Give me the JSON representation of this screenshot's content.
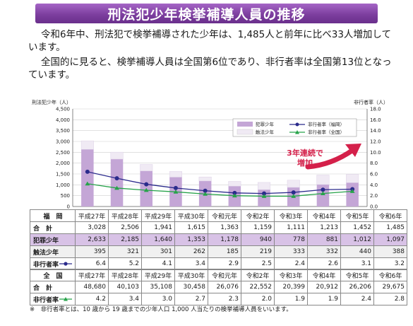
{
  "banner_title": "刑法犯少年検挙補導人員の推移",
  "paragraph1": "令和6年中、刑法犯で検挙補導された少年は、1,485人と前年に比べ33人増加しています。",
  "paragraph2": "全国的に見ると、検挙補導人員は全国第6位であり、非行者率は全国第13位となっています。",
  "annotation": "3年連続で\n増加",
  "colors": {
    "banner": "#7d3f9f",
    "crime_bar": "#c4a6d6",
    "law_bar": "#f0eaf4",
    "rate_fukuoka": "#2b2b8c",
    "rate_national": "#27a34a",
    "arrow": "#d4204a"
  },
  "chart_data": {
    "type": "bar",
    "categories": [
      "平成27年",
      "平成28年",
      "平成29年",
      "平成30年",
      "令和元年",
      "令和2年",
      "令和3年",
      "令和4年",
      "令和5年",
      "令和6年"
    ],
    "ylabel": "刑法犯少年（人）",
    "y2label": "非行者率（人）",
    "ylim": [
      0,
      4500
    ],
    "y2lim": [
      0,
      18.0
    ],
    "yticks": [
      "0",
      "500",
      "1,000",
      "1,500",
      "2,000",
      "2,500",
      "3,000",
      "3,500",
      "4,000",
      "4,500"
    ],
    "y2ticks": [
      "0.0",
      "2.0",
      "4.0",
      "6.0",
      "8.0",
      "10.0",
      "12.0",
      "14.0",
      "16.0",
      "18.0"
    ],
    "series": [
      {
        "name": "犯罪少年",
        "type": "bar",
        "values": [
          2633,
          2185,
          1640,
          1353,
          1178,
          940,
          778,
          881,
          1012,
          1097
        ]
      },
      {
        "name": "触法少年",
        "type": "bar",
        "values": [
          395,
          321,
          301,
          262,
          185,
          219,
          333,
          332,
          440,
          388
        ]
      },
      {
        "name": "非行者率（福岡）",
        "type": "line",
        "axis": "right",
        "values": [
          6.4,
          5.2,
          4.1,
          3.4,
          2.9,
          2.5,
          2.4,
          2.6,
          3.1,
          3.2
        ]
      },
      {
        "name": "非行者率（全国）",
        "type": "line",
        "axis": "right",
        "values": [
          4.2,
          3.4,
          3.0,
          2.7,
          2.3,
          2.0,
          1.9,
          1.9,
          2.4,
          2.8
        ]
      }
    ],
    "legend": [
      "犯罪少年",
      "触法少年",
      "非行者率（福岡）",
      "非行者率（全国）"
    ]
  },
  "table": {
    "fukuoka_label": "福　岡",
    "total_label": "合　計",
    "crime_label": "犯罪少年",
    "law_label": "触法少年",
    "rate_label": "非行者率",
    "national_label": "全　国",
    "fukuoka_total": [
      "3,028",
      "2,506",
      "1,941",
      "1,615",
      "1,363",
      "1,159",
      "1,111",
      "1,213",
      "1,452",
      "1,485"
    ],
    "fukuoka_crime": [
      "2,633",
      "2,185",
      "1,640",
      "1,353",
      "1,178",
      "940",
      "778",
      "881",
      "1,012",
      "1,097"
    ],
    "fukuoka_law": [
      "395",
      "321",
      "301",
      "262",
      "185",
      "219",
      "333",
      "332",
      "440",
      "388"
    ],
    "fukuoka_rate": [
      "6.4",
      "5.2",
      "4.1",
      "3.4",
      "2.9",
      "2.5",
      "2.4",
      "2.6",
      "3.1",
      "3.2"
    ],
    "national_total": [
      "48,680",
      "40,103",
      "35,108",
      "30,458",
      "26,076",
      "22,552",
      "20,399",
      "20,912",
      "26,206",
      "29,675"
    ],
    "national_rate": [
      "4.2",
      "3.4",
      "3.0",
      "2.7",
      "2.3",
      "2.0",
      "1.9",
      "1.9",
      "2.4",
      "2.8"
    ]
  },
  "note": "※　非行者率とは、10 歳から 19 歳までの少年人口 1,000 人当たりの検挙補導人員をいいます。"
}
